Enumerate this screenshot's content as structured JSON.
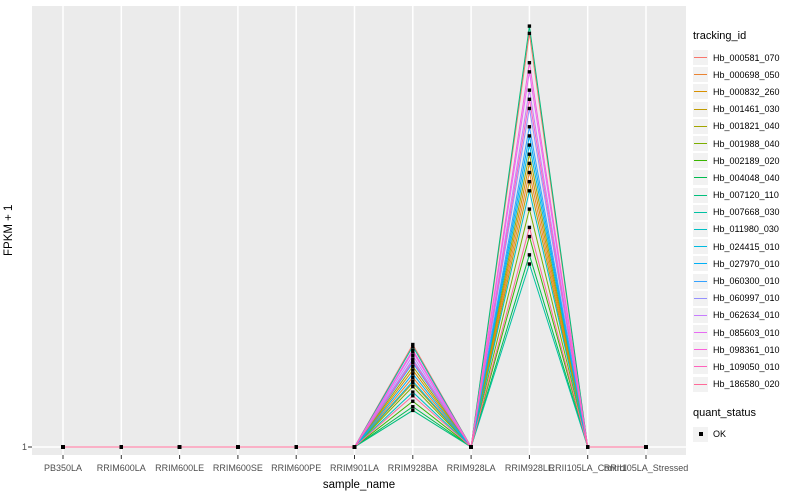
{
  "chart_data": {
    "type": "line",
    "xlabel": "sample_name",
    "ylabel": "FPKM + 1",
    "ytick_labels": [
      "1"
    ],
    "ylim": [
      1,
      3.41
    ],
    "grid": "ggplot-gray-panel-white-gridlines",
    "legend_position": "right",
    "legend_title": "tracking_id",
    "quant_legend": {
      "title": "quant_status",
      "items": [
        "OK"
      ]
    },
    "colors": {
      "panel_bg": "#EBEBEB",
      "gridline": "#FFFFFF",
      "tick_label": "#4D4D4D",
      "tick_mark": "#333333",
      "point": "#000000",
      "legend_key_bg": "#F2F2F2"
    },
    "categories": [
      "PB350LA",
      "RRIM600LA",
      "RRIM600LE",
      "RRIM600SE",
      "RRIM600PE",
      "RRIM901LA",
      "RRIM928BA",
      "RRIM928LA",
      "RRIM928LE",
      "RRII105LA_Control",
      "RRII105LA_Stressed"
    ],
    "series": [
      {
        "name": "Hb_000581_070",
        "color": "#F8766D",
        "values": [
          1,
          1,
          1,
          1,
          1,
          1,
          1.56,
          1,
          3.26,
          1,
          1
        ]
      },
      {
        "name": "Hb_000698_050",
        "color": "#EA8331",
        "values": [
          1,
          1,
          1,
          1,
          1,
          1,
          1.38,
          1,
          2.5,
          1,
          1
        ]
      },
      {
        "name": "Hb_000832_260",
        "color": "#D89000",
        "values": [
          1,
          1,
          1,
          1,
          1,
          1,
          1.42,
          1,
          2.55,
          1,
          1
        ]
      },
      {
        "name": "Hb_001461_030",
        "color": "#C09B00",
        "values": [
          1,
          1,
          1,
          1,
          1,
          1,
          1.35,
          1,
          2.45,
          1,
          1
        ]
      },
      {
        "name": "Hb_001821_040",
        "color": "#A3A500",
        "values": [
          1,
          1,
          1,
          1,
          1,
          1,
          1.44,
          1,
          2.6,
          1,
          1
        ]
      },
      {
        "name": "Hb_001988_040",
        "color": "#7CAE00",
        "values": [
          1,
          1,
          1,
          1,
          1,
          1,
          1.33,
          1,
          2.3,
          1,
          1
        ]
      },
      {
        "name": "Hb_002189_020",
        "color": "#39B600",
        "values": [
          1,
          1,
          1,
          1,
          1,
          1,
          1.25,
          1,
          2.15,
          1,
          1
        ]
      },
      {
        "name": "Hb_004048_040",
        "color": "#00BB4E",
        "values": [
          1,
          1,
          1,
          1,
          1,
          1,
          1.22,
          1,
          2.05,
          1,
          1
        ]
      },
      {
        "name": "Hb_007120_110",
        "color": "#00BF7D",
        "values": [
          1,
          1,
          1,
          1,
          1,
          1,
          1.2,
          1,
          3.3,
          1,
          1
        ]
      },
      {
        "name": "Hb_007668_030",
        "color": "#00C1A3",
        "values": [
          1,
          1,
          1,
          1,
          1,
          1,
          1.55,
          1,
          2.0,
          1,
          1
        ]
      },
      {
        "name": "Hb_011980_030",
        "color": "#00BFC4",
        "values": [
          1,
          1,
          1,
          1,
          1,
          1,
          1.3,
          1,
          2.4,
          1,
          1
        ]
      },
      {
        "name": "Hb_024415_010",
        "color": "#00BAE0",
        "values": [
          1,
          1,
          1,
          1,
          1,
          1,
          1.36,
          1,
          2.65,
          1,
          1
        ]
      },
      {
        "name": "Hb_027970_010",
        "color": "#00B0F6",
        "values": [
          1,
          1,
          1,
          1,
          1,
          1,
          1.4,
          1,
          2.7,
          1,
          1
        ]
      },
      {
        "name": "Hb_060300_010",
        "color": "#35A2FF",
        "values": [
          1,
          1,
          1,
          1,
          1,
          1,
          1.46,
          1,
          2.75,
          1,
          1
        ]
      },
      {
        "name": "Hb_060997_010",
        "color": "#9590FF",
        "values": [
          1,
          1,
          1,
          1,
          1,
          1,
          1.48,
          1,
          2.85,
          1,
          1
        ]
      },
      {
        "name": "Hb_062634_010",
        "color": "#C77CFF",
        "values": [
          1,
          1,
          1,
          1,
          1,
          1,
          1.5,
          1,
          2.95,
          1,
          1
        ]
      },
      {
        "name": "Hb_085603_010",
        "color": "#E76BF3",
        "values": [
          1,
          1,
          1,
          1,
          1,
          1,
          1.52,
          1,
          3.05,
          1,
          1
        ]
      },
      {
        "name": "Hb_098361_010",
        "color": "#FA62DB",
        "values": [
          1,
          1,
          1,
          1,
          1,
          1,
          1.53,
          1,
          3.1,
          1,
          1
        ]
      },
      {
        "name": "Hb_109050_010",
        "color": "#FF62BC",
        "values": [
          1,
          1,
          1,
          1,
          1,
          1,
          1.47,
          1,
          2.9,
          1,
          1
        ]
      },
      {
        "name": "Hb_186580_020",
        "color": "#FF6A98",
        "values": [
          1,
          1,
          1,
          1,
          1,
          1,
          1.28,
          1,
          2.2,
          1,
          1
        ]
      }
    ]
  }
}
